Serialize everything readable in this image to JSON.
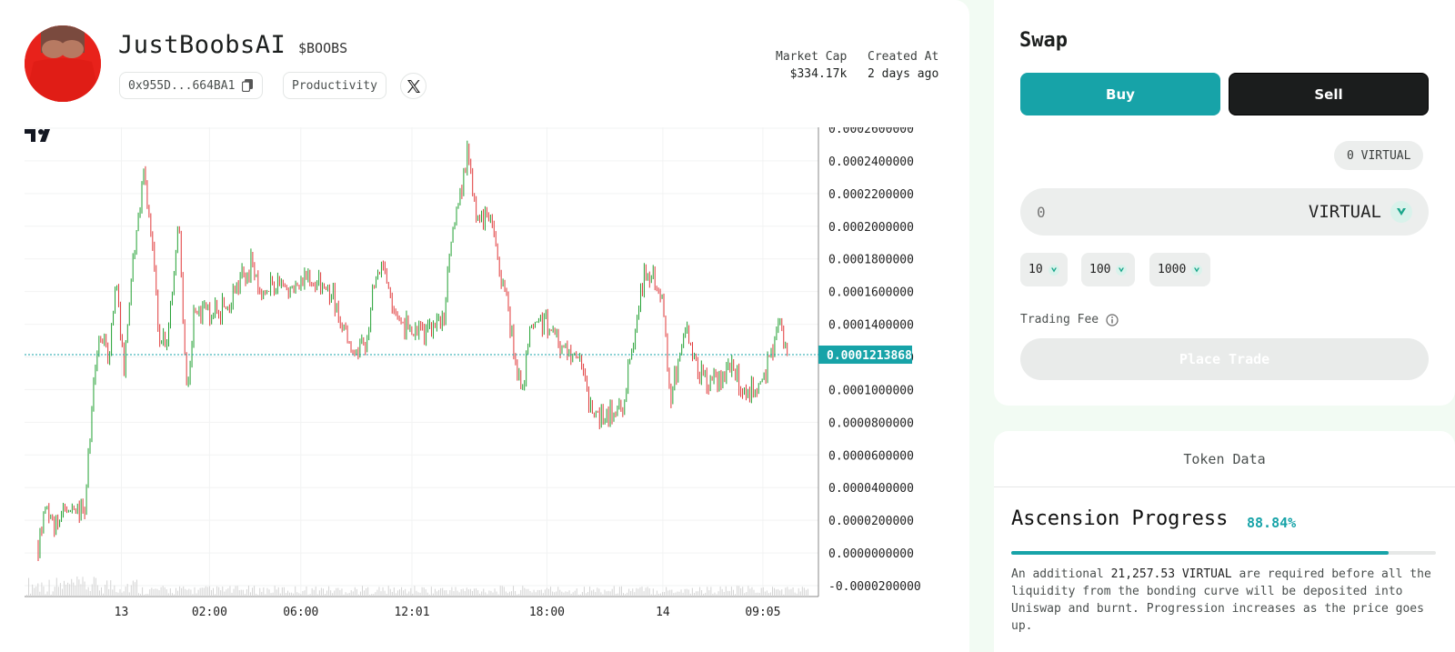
{
  "token": {
    "name": "JustBoobsAI",
    "ticker": "$BOOBS",
    "address": "0x955D...664BA1",
    "category": "Productivity",
    "market_cap_label": "Market Cap",
    "market_cap_value": "$334.17k",
    "created_label": "Created At",
    "created_value": "2 days ago"
  },
  "chart_data": {
    "type": "candlestick",
    "y_ticks": [
      "0.0002600000",
      "0.0002400000",
      "0.0002200000",
      "0.0002000000",
      "0.0001800000",
      "0.0001600000",
      "0.0001400000",
      "0.0001200000",
      "0.0001000000",
      "0.0000800000",
      "0.0000600000",
      "0.0000400000",
      "0.0000200000",
      "0.0000000000",
      "-0.0000200000"
    ],
    "x_ticks": [
      "13",
      "02:00",
      "06:00",
      "12:01",
      "18:00",
      "14",
      "09:05"
    ],
    "ylim": [
      -2e-05,
      0.00026
    ],
    "last_price": "0.0001213868",
    "approx_price_path": [
      [
        0.0,
        5e-06
      ],
      [
        0.01,
        3.2e-05
      ],
      [
        0.02,
        1.8e-05
      ],
      [
        0.04,
        2.4e-05
      ],
      [
        0.06,
        3e-05
      ],
      [
        0.07,
        9.5e-05
      ],
      [
        0.08,
        0.000135
      ],
      [
        0.09,
        0.000118
      ],
      [
        0.1,
        0.000165
      ],
      [
        0.11,
        0.00011
      ],
      [
        0.12,
        0.000175
      ],
      [
        0.135,
        0.000232
      ],
      [
        0.145,
        0.00019
      ],
      [
        0.155,
        0.000135
      ],
      [
        0.165,
        0.000122
      ],
      [
        0.18,
        0.000208
      ],
      [
        0.19,
        0.0001
      ],
      [
        0.2,
        0.000145
      ],
      [
        0.22,
        0.000148
      ],
      [
        0.24,
        0.00015
      ],
      [
        0.26,
        0.000168
      ],
      [
        0.275,
        0.000178
      ],
      [
        0.29,
        0.000155
      ],
      [
        0.3,
        0.000165
      ],
      [
        0.32,
        0.00016
      ],
      [
        0.35,
        0.000168
      ],
      [
        0.38,
        0.000155
      ],
      [
        0.4,
        0.000125
      ],
      [
        0.42,
        0.000128
      ],
      [
        0.43,
        0.000165
      ],
      [
        0.44,
        0.000172
      ],
      [
        0.46,
        0.000148
      ],
      [
        0.48,
        0.000132
      ],
      [
        0.5,
        0.000133
      ],
      [
        0.52,
        0.000142
      ],
      [
        0.53,
        0.000195
      ],
      [
        0.55,
        0.000243
      ],
      [
        0.56,
        0.00021
      ],
      [
        0.58,
        0.0002
      ],
      [
        0.6,
        0.000155
      ],
      [
        0.62,
        9.5e-05
      ],
      [
        0.63,
        0.00014
      ],
      [
        0.65,
        0.000142
      ],
      [
        0.67,
        0.000128
      ],
      [
        0.69,
        0.000122
      ],
      [
        0.71,
        8.5e-05
      ],
      [
        0.73,
        8.5e-05
      ],
      [
        0.75,
        9e-05
      ],
      [
        0.77,
        0.000155
      ],
      [
        0.78,
        0.000175
      ],
      [
        0.8,
        0.000158
      ],
      [
        0.81,
        9.5e-05
      ],
      [
        0.83,
        0.000135
      ],
      [
        0.85,
        0.000108
      ],
      [
        0.87,
        0.000105
      ],
      [
        0.89,
        0.000112
      ],
      [
        0.91,
        9.8e-05
      ],
      [
        0.93,
        0.000108
      ],
      [
        0.94,
        0.000125
      ],
      [
        0.95,
        0.000138
      ],
      [
        0.96,
        0.000122
      ]
    ],
    "colors": {
      "up": "#26a69a",
      "down": "#ef5350",
      "price_tag": "#17a3a8"
    }
  },
  "swap": {
    "title": "Swap",
    "buy_label": "Buy",
    "sell_label": "Sell",
    "balance": "0 VIRTUAL",
    "amount_placeholder": "0",
    "currency": "VIRTUAL",
    "presets": [
      "10",
      "100",
      "1000"
    ],
    "fee_label": "Trading Fee",
    "place_trade_label": "Place Trade"
  },
  "token_data": {
    "tab_label": "Token Data",
    "ascension_title": "Ascension Progress",
    "ascension_pct": "88.84%",
    "ascension_fraction": 0.8884,
    "desc_prefix": "An additional ",
    "desc_amount": "21,257.53 VIRTUAL",
    "desc_suffix": " are required before all the liquidity from the bonding curve will be deposited into Uniswap and burnt. Progression increases as the price goes up."
  },
  "icons": [
    "copy-icon",
    "x-twitter-icon",
    "virtual-token-icon",
    "info-icon",
    "tradingview-logo"
  ]
}
